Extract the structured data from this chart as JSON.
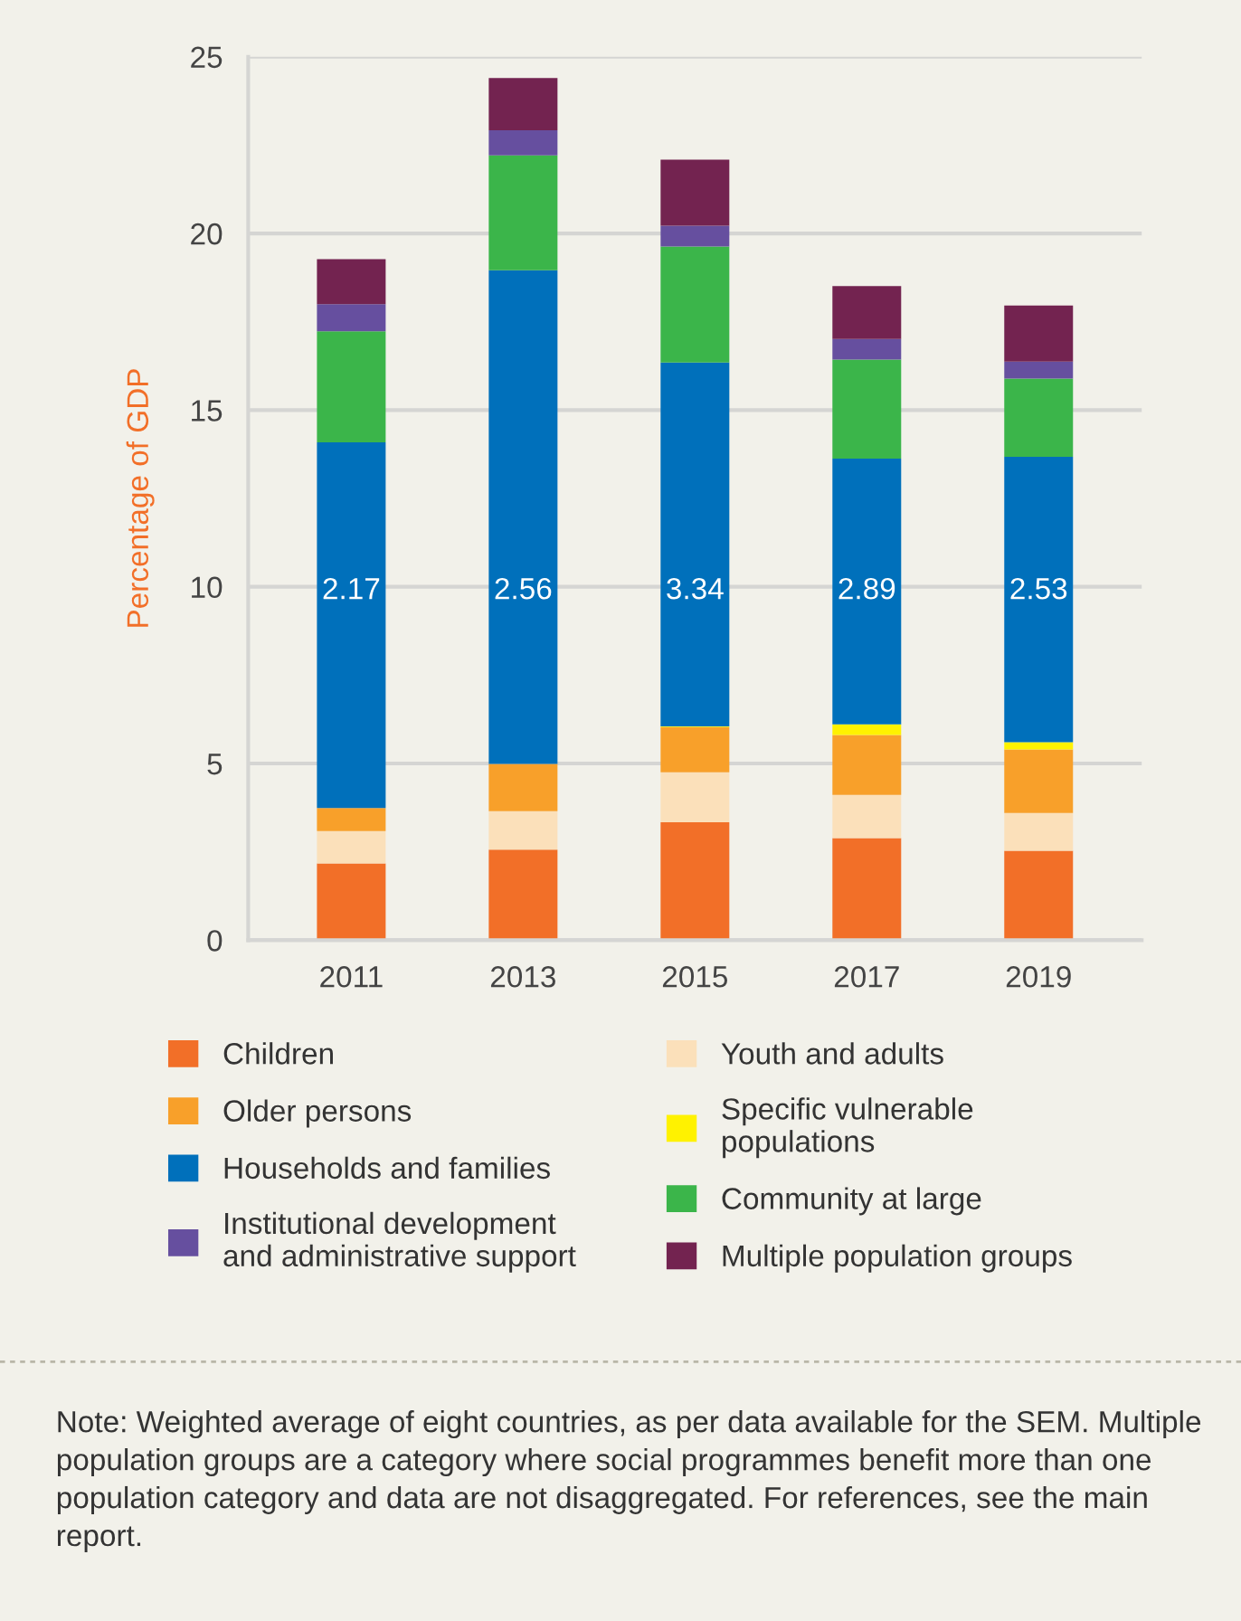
{
  "chart_data": {
    "type": "bar",
    "stacked": true,
    "ylabel": "Percentage of GDP",
    "categories": [
      "2011",
      "2013",
      "2015",
      "2017",
      "2019"
    ],
    "series": [
      {
        "name": "Children",
        "color": "#f26f28",
        "values": [
          2.17,
          2.56,
          3.34,
          2.89,
          2.53
        ]
      },
      {
        "name": "Youth and adults",
        "color": "#fbe0ba",
        "values": [
          0.92,
          1.09,
          1.41,
          1.22,
          1.07
        ]
      },
      {
        "name": "Older persons",
        "color": "#f8a02a",
        "values": [
          0.65,
          1.34,
          1.28,
          1.7,
          1.8
        ]
      },
      {
        "name": "Specific vulnerable\npopulations",
        "color": "#fff200",
        "values": [
          0,
          0,
          0.02,
          0.3,
          0.2
        ]
      },
      {
        "name": "Households and families",
        "color": "#0070bb",
        "values": [
          10.35,
          13.97,
          10.3,
          7.52,
          8.08
        ]
      },
      {
        "name": "Community at large",
        "color": "#3bb54a",
        "values": [
          3.14,
          3.25,
          3.28,
          2.8,
          2.21
        ]
      },
      {
        "name": "Institutional development\nand administrative support",
        "color": "#664f9f",
        "values": [
          0.77,
          0.71,
          0.59,
          0.58,
          0.48
        ]
      },
      {
        "name": "Multiple population groups",
        "color": "#732350",
        "values": [
          1.27,
          1.48,
          1.87,
          1.5,
          1.59
        ]
      }
    ],
    "ylim": [
      0,
      25
    ],
    "yticks": [
      0,
      5,
      10,
      15,
      20,
      25
    ],
    "grid": "y",
    "legend": "bottom",
    "annotations": [
      "2.17",
      "2.56",
      "3.34",
      "2.89",
      "2.53",
      "Note: Weighted average of eight countries, as per data available for the SEM. Multiple population groups are a category where social programmes benefit more than one population category and data are not disaggregated. For references, see the main report."
    ]
  }
}
